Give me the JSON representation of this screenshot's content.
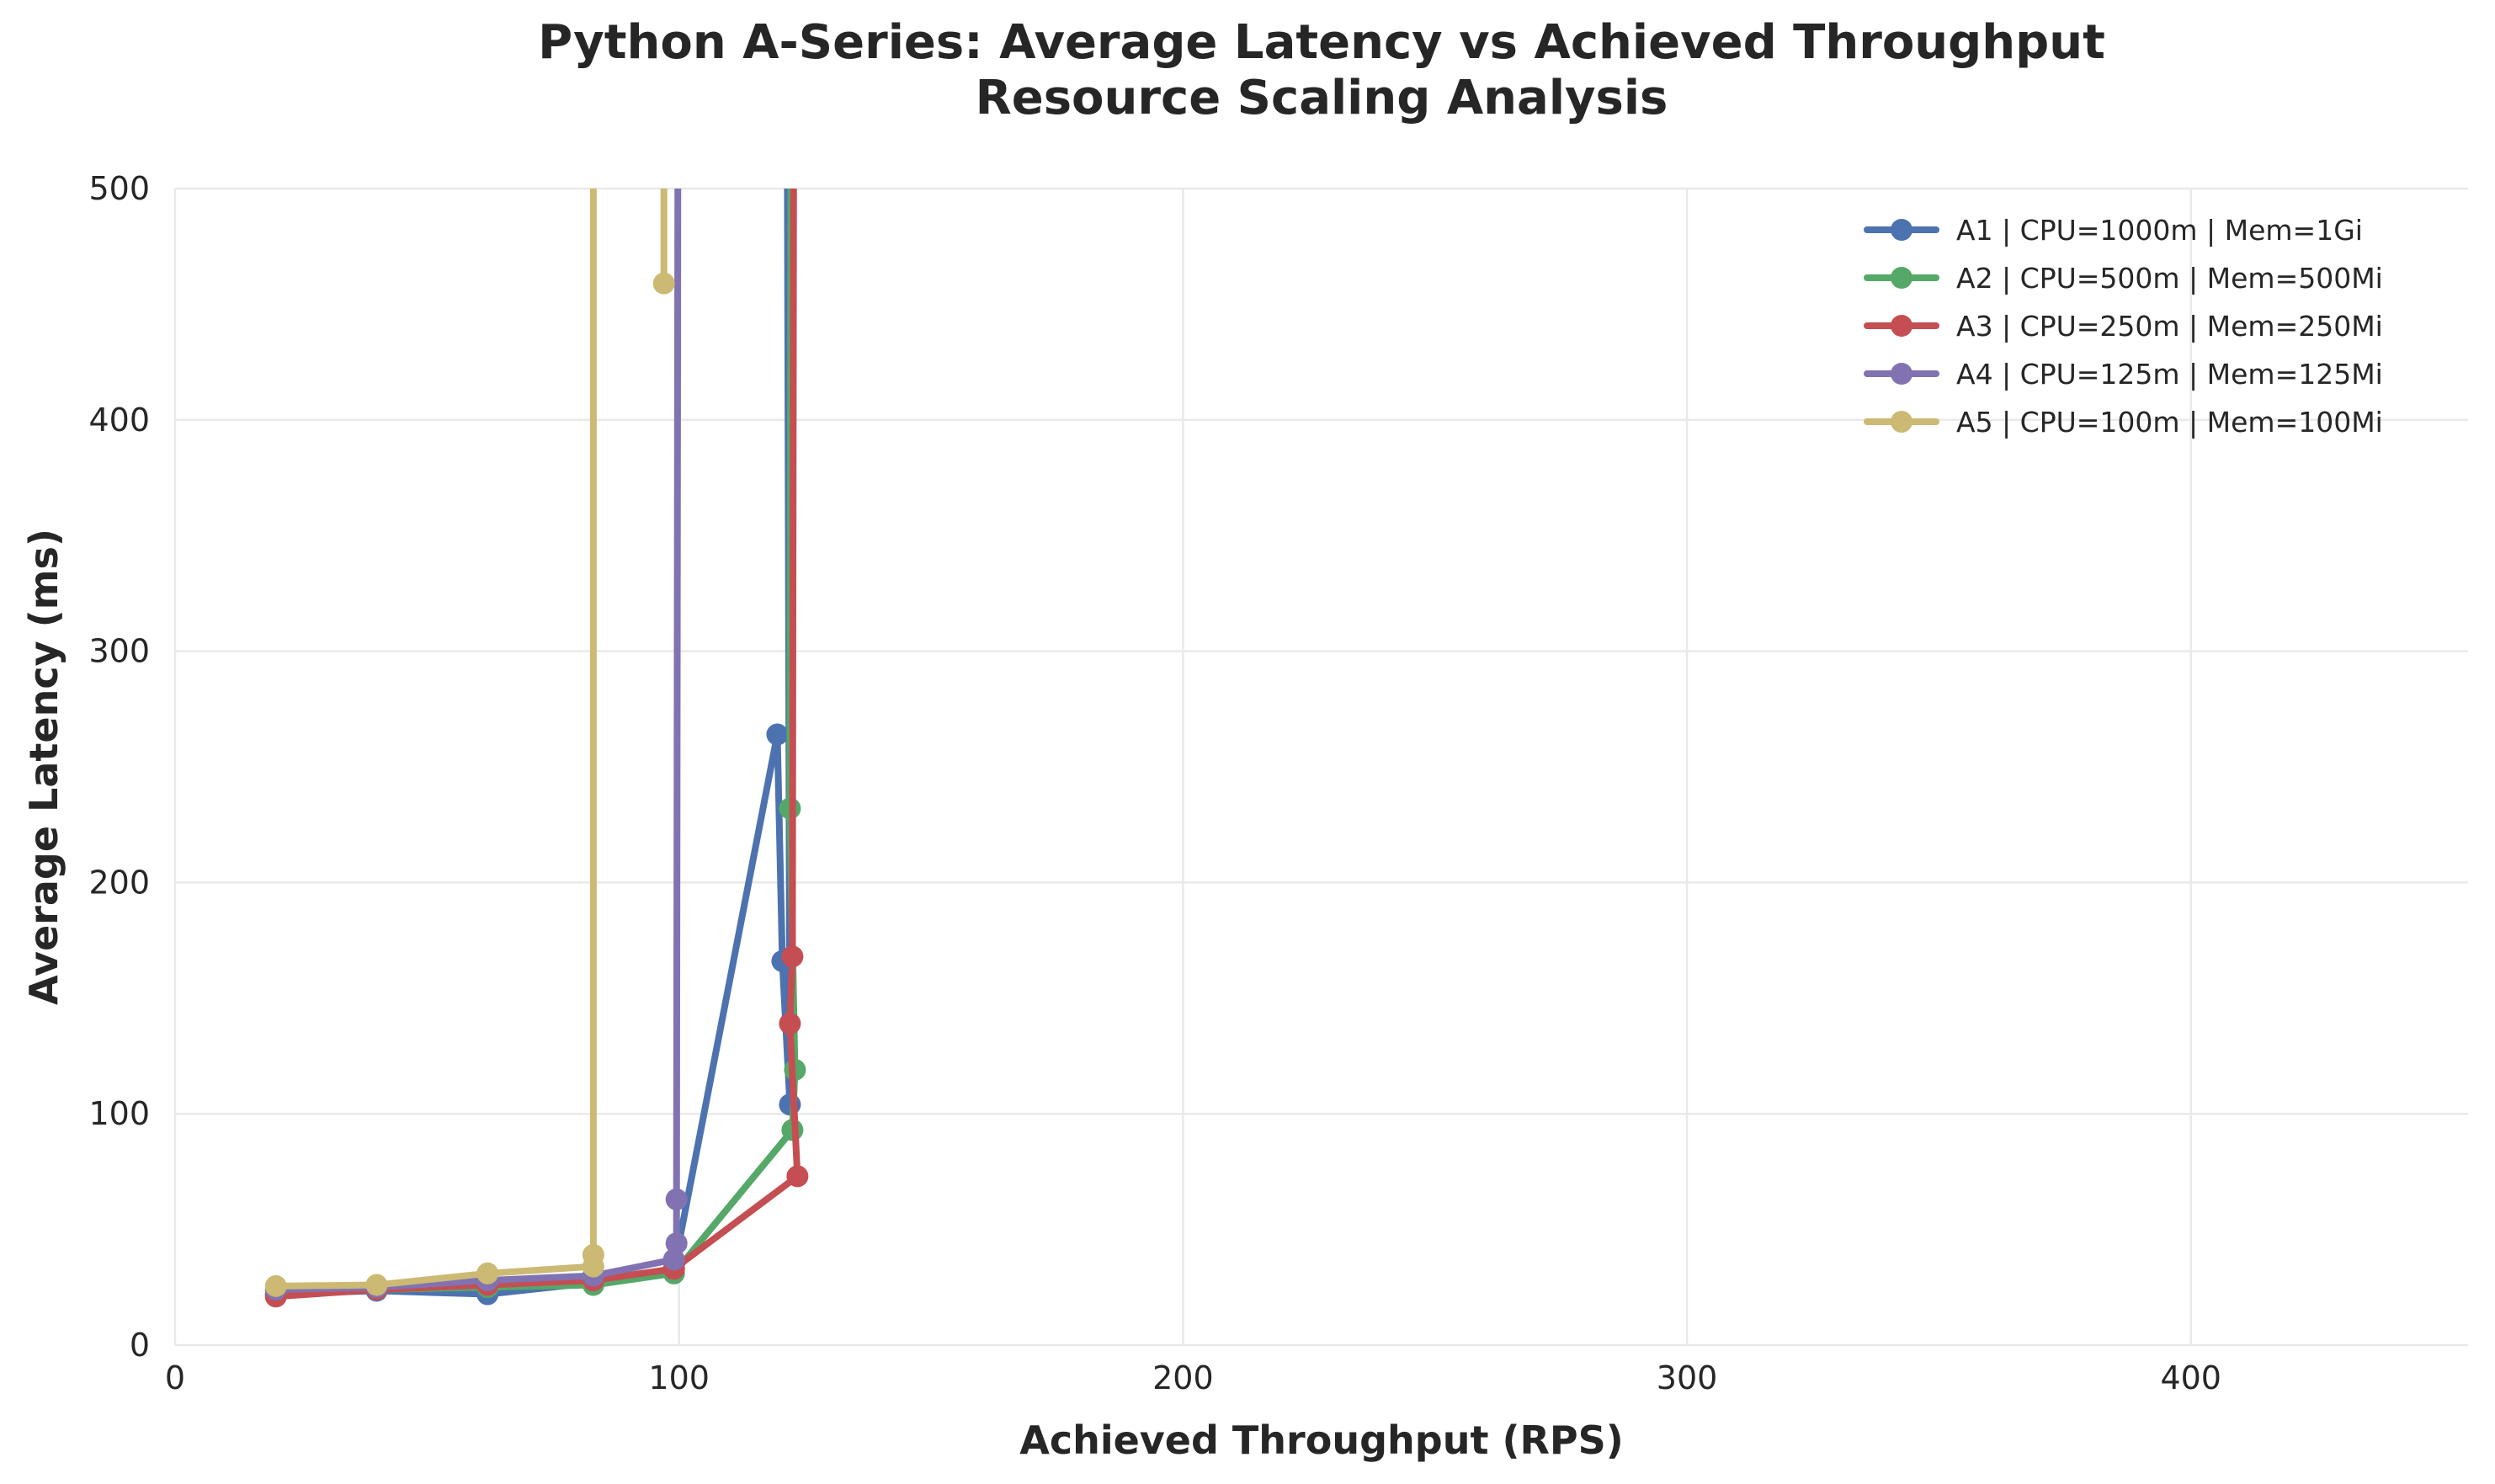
{
  "chart_data": {
    "type": "line",
    "title": "Python A-Series: Average Latency vs Achieved Throughput",
    "subtitle": "Resource Scaling Analysis",
    "xlabel": "Achieved Throughput (RPS)",
    "ylabel": "Average Latency (ms)",
    "xlim": [
      0,
      455
    ],
    "ylim": [
      0,
      500
    ],
    "xticks": [
      0,
      100,
      200,
      300,
      400
    ],
    "yticks": [
      0,
      100,
      200,
      300,
      400,
      500
    ],
    "grid": true,
    "legend_position": "top-right",
    "series": [
      {
        "name": "A1 | CPU=1000m | Mem=1Gi",
        "color": "#4C72B0",
        "points": [
          [
            20,
            22
          ],
          [
            40,
            23.5
          ],
          [
            62,
            22
          ],
          [
            83,
            27
          ],
          [
            99,
            33
          ],
          [
            119.5,
            264
          ],
          [
            120.5,
            166
          ],
          [
            122,
            104
          ],
          [
            121,
            900
          ]
        ]
      },
      {
        "name": "A2 | CPU=500m | Mem=500Mi",
        "color": "#55A868",
        "points": [
          [
            20,
            22
          ],
          [
            40,
            24
          ],
          [
            62,
            25
          ],
          [
            83,
            26
          ],
          [
            99,
            31
          ],
          [
            122.5,
            93
          ],
          [
            123,
            119
          ],
          [
            122,
            232
          ],
          [
            122.5,
            900
          ]
        ]
      },
      {
        "name": "A3 | CPU=250m | Mem=250Mi",
        "color": "#C44E52",
        "points": [
          [
            20,
            21
          ],
          [
            40,
            24
          ],
          [
            62,
            26
          ],
          [
            83,
            28
          ],
          [
            99,
            33
          ],
          [
            123.5,
            73
          ],
          [
            122,
            139
          ],
          [
            122.5,
            168
          ],
          [
            123,
            900
          ]
        ]
      },
      {
        "name": "A4 | CPU=125m | Mem=125Mi",
        "color": "#8172B2",
        "points": [
          [
            20,
            24
          ],
          [
            40,
            25
          ],
          [
            62,
            28
          ],
          [
            83,
            30
          ],
          [
            99,
            37
          ],
          [
            99.5,
            44
          ],
          [
            99.5,
            63
          ],
          [
            100,
            900
          ]
        ]
      },
      {
        "name": "A5 | CPU=100m | Mem=100Mi",
        "color": "#CCB974",
        "points": [
          [
            20,
            25.5
          ],
          [
            40,
            26
          ],
          [
            62,
            31
          ],
          [
            83,
            34
          ],
          [
            83,
            39
          ],
          [
            83,
            900
          ],
          [
            97,
            900
          ],
          [
            97,
            459
          ]
        ]
      }
    ]
  }
}
